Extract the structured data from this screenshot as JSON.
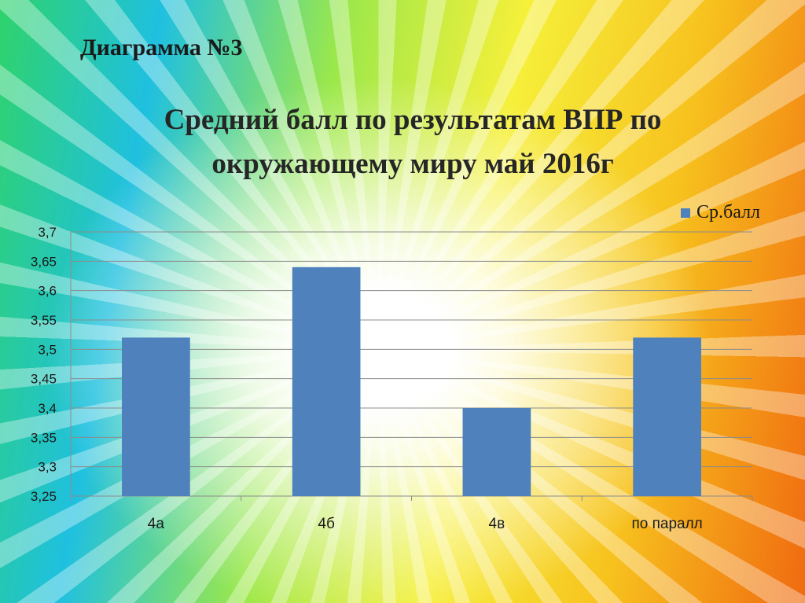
{
  "slide": {
    "label": "Диаграмма №3"
  },
  "chart_data": {
    "type": "bar",
    "title_lines": [
      "Средний балл по результатам ВПР по",
      "окружающему миру май 2016г"
    ],
    "categories": [
      "4а",
      "4б",
      "4в",
      "по паралл"
    ],
    "series": [
      {
        "name": "Ср.балл",
        "values": [
          3.52,
          3.64,
          3.4,
          3.52
        ],
        "color": "#4f81bd"
      }
    ],
    "ylim": [
      3.25,
      3.7
    ],
    "yticks": [
      "3,25",
      "3,3",
      "3,35",
      "3,4",
      "3,45",
      "3,5",
      "3,55",
      "3,6",
      "3,65",
      "3,7"
    ],
    "grid": true,
    "legend": "top-right"
  }
}
